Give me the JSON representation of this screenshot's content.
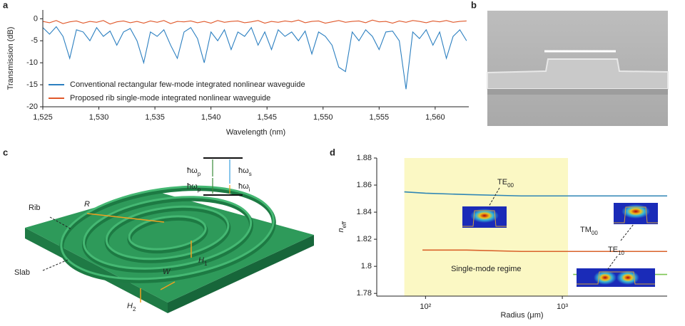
{
  "panel_labels": [
    "a",
    "b",
    "c",
    "d"
  ],
  "chart_data": [
    {
      "type": "line",
      "ylabel": "Transmission (dB)",
      "xlabel": "Wavelength (nm)",
      "x": [
        1525,
        1525.6,
        1526.2,
        1526.8,
        1527.4,
        1528,
        1528.6,
        1529.2,
        1529.8,
        1530.4,
        1531,
        1531.6,
        1532.2,
        1532.8,
        1533.4,
        1534,
        1534.6,
        1535.2,
        1535.8,
        1536.4,
        1537,
        1537.6,
        1538.2,
        1538.8,
        1539.4,
        1540,
        1540.6,
        1541.2,
        1541.8,
        1542.4,
        1543,
        1543.6,
        1544.2,
        1544.8,
        1545.4,
        1546,
        1546.6,
        1547.2,
        1547.8,
        1548.4,
        1549,
        1549.6,
        1550.2,
        1550.8,
        1551.4,
        1552,
        1552.6,
        1553.2,
        1553.8,
        1554.4,
        1555,
        1555.6,
        1556.2,
        1556.8,
        1557.4,
        1558,
        1558.6,
        1559.2,
        1559.8,
        1560.4,
        1561,
        1561.6,
        1562.2,
        1562.8
      ],
      "series": [
        {
          "name": "Conventional rectangular few-mode integrated nonlinear waveguide",
          "color": "#2b7fc0",
          "values": [
            -2,
            -3.5,
            -1.8,
            -4,
            -9,
            -2.5,
            -3,
            -5,
            -2,
            -4,
            -2.8,
            -6,
            -3,
            -2.2,
            -5,
            -10,
            -3,
            -4,
            -2.5,
            -6,
            -9,
            -3,
            -2,
            -4.5,
            -10,
            -3,
            -5,
            -2.5,
            -7,
            -3,
            -4,
            -2,
            -6,
            -3,
            -7,
            -2.5,
            -4,
            -3,
            -5,
            -2.8,
            -8,
            -3,
            -4,
            -6,
            -11,
            -12,
            -3,
            -5,
            -2.5,
            -4,
            -7,
            -3,
            -2.8,
            -5,
            -16,
            -3,
            -4.5,
            -2.5,
            -6,
            -3,
            -9,
            -4,
            -2.5,
            -5
          ]
        },
        {
          "name": "Proposed rib single-mode integrated nonlinear waveguide",
          "color": "#e0582a",
          "values": [
            -0.6,
            -0.9,
            -0.4,
            -1.1,
            -0.7,
            -0.5,
            -1,
            -0.6,
            -0.8,
            -0.4,
            -1.2,
            -0.7,
            -0.5,
            -0.9,
            -0.6,
            -1,
            -0.5,
            -0.8,
            -0.4,
            -1.1,
            -0.6,
            -0.7,
            -0.5,
            -0.9,
            -0.6,
            -1,
            -0.4,
            -0.8,
            -0.6,
            -0.5,
            -0.9,
            -0.7,
            -0.4,
            -1,
            -0.6,
            -0.8,
            -0.5,
            -0.7,
            -0.3,
            -0.9,
            -0.6,
            -0.5,
            -1,
            -0.7,
            -0.4,
            -0.8,
            -0.6,
            -0.5,
            -0.9,
            -0.3,
            -0.7,
            -0.6,
            -1,
            -0.5,
            -0.8,
            -0.4,
            -0.6,
            -0.9,
            -0.5,
            -0.7,
            -0.4,
            -0.8,
            -0.6,
            -0.5
          ]
        }
      ],
      "xlim": [
        1525,
        1563
      ],
      "xticks": [
        {
          "value": 1525,
          "label": "1,525"
        },
        {
          "value": 1530,
          "label": "1,530"
        },
        {
          "value": 1535,
          "label": "1,535"
        },
        {
          "value": 1540,
          "label": "1,540"
        },
        {
          "value": 1545,
          "label": "1,545"
        },
        {
          "value": 1550,
          "label": "1,550"
        },
        {
          "value": 1555,
          "label": "1,555"
        },
        {
          "value": 1560,
          "label": "1,560"
        }
      ],
      "ylim": [
        -20,
        2
      ],
      "yticks": [
        0,
        -5,
        -10,
        -15,
        -20
      ],
      "legend": "lower left"
    },
    {
      "type": "line",
      "ylabel": {
        "text": "n",
        "sub": "eff"
      },
      "xlabel": "Radius (μm)",
      "xlog": true,
      "xlim": [
        44,
        5840
      ],
      "xticks": [
        {
          "value": 100,
          "label": "10²"
        },
        {
          "value": 1000,
          "label": "10³"
        }
      ],
      "ylim": [
        1.778,
        1.88
      ],
      "yticks": [
        1.78,
        1.8,
        1.82,
        1.84,
        1.86,
        1.88
      ],
      "highlight_span": [
        70,
        1100
      ],
      "highlight_color": "#fbf8c4",
      "region_label": "Single-mode regime",
      "series": [
        {
          "color": "#2f86b5",
          "x": [
            70,
            100,
            200,
            500,
            1000,
            2000,
            5840
          ],
          "values": [
            1.855,
            1.854,
            1.853,
            1.852,
            1.852,
            1.852,
            1.852
          ]
        },
        {
          "color": "#d9622b",
          "x": [
            95,
            200,
            500,
            1000,
            2000,
            5840
          ],
          "values": [
            1.812,
            1.812,
            1.811,
            1.811,
            1.811,
            1.811
          ]
        },
        {
          "color": "#7cc552",
          "x": [
            1200,
            2000,
            5840
          ],
          "values": [
            1.794,
            1.794,
            1.794
          ]
        }
      ],
      "annotations": [
        {
          "text": "TE",
          "sub": "00"
        },
        {
          "text": "TM",
          "sub": "00"
        },
        {
          "text": "TE",
          "sub": "10"
        }
      ]
    }
  ],
  "diagram": {
    "rib": "Rib",
    "slab": "Slab",
    "r": "R",
    "w": "W",
    "h1": {
      "text": "H",
      "sub": "1"
    },
    "h2": {
      "text": "H",
      "sub": "2"
    },
    "pump1": {
      "text": "ħω",
      "sub": "p"
    },
    "pump2": {
      "text": "ħω",
      "sub": "p"
    },
    "signal": {
      "text": "ħω",
      "sub": "s"
    },
    "idler": {
      "text": "ħω",
      "sub": "i"
    }
  }
}
